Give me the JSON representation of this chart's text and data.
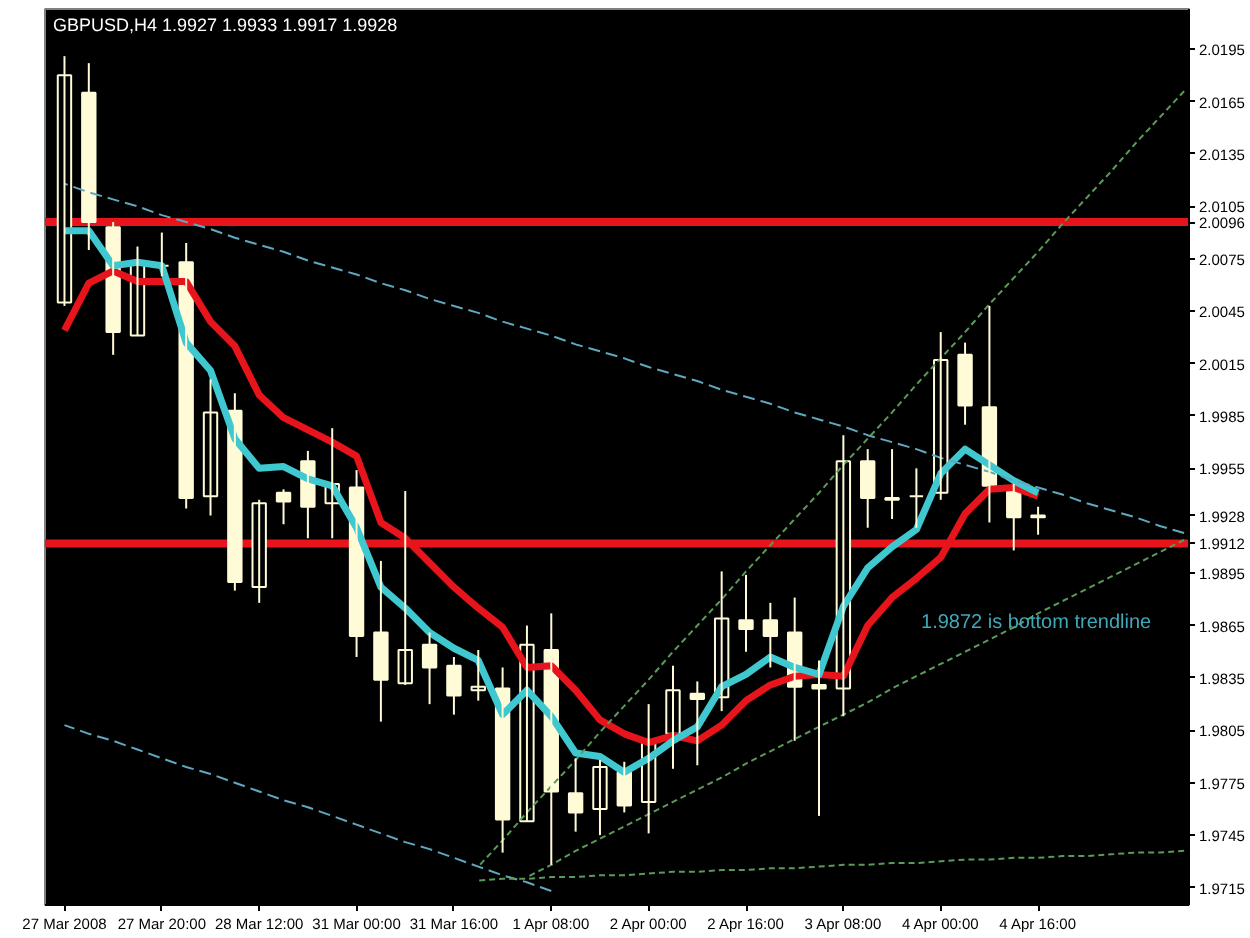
{
  "chart_data": {
    "type": "candlestick",
    "title": "GBPUSD,H4  1.9927 1.9933 1.9917 1.9928",
    "categories": [
      "27 Mar 2008",
      null,
      null,
      null,
      "27 Mar 20:00",
      null,
      null,
      null,
      "28 Mar 12:00",
      null,
      null,
      null,
      "31 Mar 00:00",
      null,
      null,
      null,
      "31 Mar 16:00",
      null,
      null,
      null,
      "1 Apr 08:00",
      null,
      null,
      null,
      "2 Apr 00:00",
      null,
      null,
      null,
      "2 Apr 16:00",
      null,
      null,
      null,
      "3 Apr 08:00",
      null,
      null,
      null,
      "4 Apr 00:00",
      null,
      null,
      null,
      "4 Apr 16:00",
      null,
      null,
      null,
      null,
      null,
      null
    ],
    "ohlc": [
      [
        2.005,
        2.0191,
        2.0048,
        2.018
      ],
      [
        2.017,
        2.0187,
        2.008,
        2.0096
      ],
      [
        2.0093,
        2.0096,
        2.002,
        2.0033
      ],
      [
        2.0031,
        2.0082,
        2.0031,
        2.0073
      ],
      [
        2.0071,
        2.009,
        2.0065,
        2.0071
      ],
      [
        2.0073,
        2.0084,
        1.9932,
        1.9938
      ],
      [
        1.9939,
        2.0006,
        1.9928,
        1.9987
      ],
      [
        1.9988,
        1.9998,
        1.9885,
        1.989
      ],
      [
        1.9887,
        1.9937,
        1.9878,
        1.9935
      ],
      [
        1.9941,
        1.9943,
        1.9923,
        1.9936
      ],
      [
        1.9959,
        1.9965,
        1.9915,
        1.9933
      ],
      [
        1.9935,
        1.9978,
        1.9915,
        1.9946
      ],
      [
        1.9944,
        1.9954,
        1.9847,
        1.9859
      ],
      [
        1.9861,
        1.9902,
        1.981,
        1.9834
      ],
      [
        1.9832,
        1.9942,
        1.9831,
        1.9851
      ],
      [
        1.9854,
        1.9861,
        1.982,
        1.9841
      ],
      [
        1.9842,
        1.9847,
        1.9814,
        1.9825
      ],
      [
        1.9828,
        1.9851,
        1.9822,
        1.983
      ],
      [
        1.9829,
        1.9841,
        1.9735,
        1.9754
      ],
      [
        1.9753,
        1.9865,
        1.9753,
        1.9854
      ],
      [
        1.9851,
        1.9872,
        1.9728,
        1.977
      ],
      [
        1.9769,
        1.9789,
        1.9747,
        1.9758
      ],
      [
        1.976,
        1.9788,
        1.9745,
        1.9784
      ],
      [
        1.9781,
        1.9787,
        1.9758,
        1.9762
      ],
      [
        1.9764,
        1.982,
        1.9746,
        1.9798
      ],
      [
        1.9803,
        1.9842,
        1.9783,
        1.9828
      ],
      [
        1.9826,
        1.9833,
        1.9785,
        1.9823
      ],
      [
        1.9824,
        1.9896,
        1.9816,
        1.9869
      ],
      [
        1.9868,
        1.9894,
        1.985,
        1.9863
      ],
      [
        1.9868,
        1.9878,
        1.9841,
        1.9859
      ],
      [
        1.9861,
        1.9881,
        1.9799,
        1.983
      ],
      [
        1.9831,
        1.9845,
        1.9756,
        1.9829
      ],
      [
        1.9829,
        1.9974,
        1.9813,
        1.9959
      ],
      [
        1.9959,
        1.9966,
        1.9921,
        1.9938
      ],
      [
        1.9938,
        1.9966,
        1.9926,
        1.9937
      ],
      [
        1.9939,
        1.9955,
        1.9921,
        1.9939
      ],
      [
        1.9941,
        2.0033,
        1.9937,
        2.0017
      ],
      [
        2.002,
        2.0027,
        1.998,
        1.9991
      ],
      [
        1.999,
        2.0048,
        1.9924,
        1.9945
      ],
      [
        1.9943,
        1.9946,
        1.9908,
        1.9927
      ],
      [
        1.9927,
        1.9933,
        1.9917,
        1.9928
      ],
      null,
      null,
      null,
      null,
      null,
      null
    ],
    "series": [
      {
        "type": "line",
        "color": "#e8141b",
        "line_style": "solid",
        "values": [
          2.0034,
          2.0061,
          2.0068,
          2.0062,
          2.0062,
          2.0062,
          2.0039,
          2.0025,
          1.9997,
          1.9984,
          1.9977,
          1.997,
          1.9962,
          1.9924,
          1.9915,
          1.9901,
          1.9887,
          1.9875,
          1.9864,
          1.9841,
          1.9842,
          1.9828,
          1.9811,
          1.9803,
          1.9798,
          1.9802,
          1.9799,
          1.9808,
          1.9822,
          1.9831,
          1.9836,
          1.9837,
          1.9836,
          1.9865,
          1.9881,
          1.9892,
          1.9904,
          1.9929,
          1.9943,
          1.9944,
          1.9939,
          null,
          null,
          null,
          null,
          null,
          null
        ]
      },
      {
        "type": "line",
        "color": "#40c8d0",
        "line_style": "solid",
        "values": [
          2.0091,
          2.0091,
          2.0071,
          2.0073,
          2.0071,
          2.0027,
          2.0011,
          1.9972,
          1.9955,
          1.9956,
          1.9949,
          1.9945,
          1.9921,
          1.9887,
          1.9875,
          1.9861,
          1.9852,
          1.9845,
          1.9814,
          1.9828,
          1.9813,
          1.9792,
          1.979,
          1.9781,
          1.9789,
          1.9799,
          1.9807,
          1.983,
          1.9837,
          1.9847,
          1.9841,
          1.9837,
          1.9876,
          1.9898,
          1.991,
          1.992,
          1.9952,
          1.9966,
          1.9957,
          1.9948,
          1.9941,
          null,
          null,
          null,
          null,
          null,
          null
        ]
      },
      {
        "type": "line",
        "color": "#5fa8c0",
        "line_style": "dashed",
        "values": [
          2.0118,
          2.0113,
          2.0109,
          2.0105,
          2.01,
          2.0096,
          2.0092,
          2.0087,
          2.0083,
          2.0079,
          2.0074,
          2.007,
          2.0066,
          2.0061,
          2.0057,
          2.0052,
          2.0048,
          2.0044,
          2.0039,
          2.0035,
          2.0031,
          2.0026,
          2.0022,
          2.0018,
          2.0013,
          2.0009,
          2.0005,
          2.0,
          1.9996,
          1.9992,
          1.9987,
          1.9983,
          1.9979,
          1.9974,
          1.997,
          1.9966,
          1.9961,
          1.9957,
          1.9953,
          1.9948,
          1.9944,
          1.994,
          1.9935,
          1.9931,
          1.9927,
          1.9922,
          1.9918
        ]
      },
      {
        "type": "line",
        "color": "#5fa8c0",
        "line_style": "dashed",
        "values": [
          1.9808,
          1.9803,
          1.9799,
          1.9794,
          1.9789,
          1.9784,
          1.978,
          1.9775,
          1.977,
          1.9765,
          1.9761,
          1.9756,
          1.9751,
          1.9746,
          1.9741,
          1.9737,
          1.9732,
          1.9727,
          1.9722,
          1.9718,
          1.9713,
          null,
          null,
          null,
          null,
          null,
          null,
          null,
          null,
          null,
          null,
          null,
          null,
          null,
          null,
          null,
          null,
          null,
          null,
          null,
          null,
          null,
          null,
          null,
          null,
          null,
          null
        ]
      },
      {
        "type": "line",
        "color": "#5a9a5a",
        "line_style": "dotted",
        "values": [
          null,
          null,
          null,
          null,
          null,
          null,
          null,
          null,
          null,
          null,
          null,
          null,
          null,
          null,
          null,
          null,
          null,
          1.9727,
          1.9742,
          1.9758,
          1.9773,
          1.9788,
          1.9804,
          1.9819,
          1.9834,
          1.985,
          1.9865,
          1.988,
          1.9896,
          1.9911,
          1.9926,
          1.9941,
          1.9957,
          1.9972,
          1.9987,
          2.0003,
          2.0018,
          2.0033,
          2.0049,
          2.0064,
          2.0079,
          2.0095,
          2.011,
          2.0125,
          2.0141,
          2.0156,
          2.0171
        ]
      },
      {
        "type": "line",
        "color": "#5a9a5a",
        "line_style": "dotted",
        "values": [
          null,
          null,
          null,
          null,
          null,
          null,
          null,
          null,
          null,
          null,
          null,
          null,
          null,
          null,
          null,
          null,
          null,
          null,
          null,
          1.9721,
          1.9728,
          1.9736,
          1.9743,
          1.975,
          1.9757,
          1.9764,
          1.9771,
          1.9778,
          1.9786,
          1.9793,
          1.98,
          1.9807,
          1.9814,
          1.9821,
          1.9829,
          1.9836,
          1.9843,
          1.985,
          1.9857,
          1.9864,
          1.9872,
          1.9879,
          1.9886,
          1.9893,
          1.99,
          1.9907,
          1.9914
        ]
      },
      {
        "type": "line",
        "color": "#5a9a5a",
        "line_style": "dotted",
        "values": [
          null,
          null,
          null,
          null,
          null,
          null,
          null,
          null,
          null,
          null,
          null,
          null,
          null,
          null,
          null,
          null,
          null,
          1.9719,
          1.972,
          1.972,
          1.9721,
          1.9721,
          1.9722,
          1.9722,
          1.9723,
          1.9724,
          1.9724,
          1.9725,
          1.9725,
          1.9726,
          1.9726,
          1.9727,
          1.9728,
          1.9728,
          1.9729,
          1.9729,
          1.973,
          1.9731,
          1.9731,
          1.9732,
          1.9732,
          1.9733,
          1.9733,
          1.9734,
          1.9735,
          1.9735,
          1.9736
        ]
      }
    ],
    "ylim": [
      1.9705,
      2.0218
    ],
    "yticks": [
      {
        "value": 1.9715,
        "label": "1.9715"
      },
      {
        "value": 1.9745,
        "label": "1.9745"
      },
      {
        "value": 1.9775,
        "label": "1.9775"
      },
      {
        "value": 1.9805,
        "label": "1.9805"
      },
      {
        "value": 1.9835,
        "label": "1.9835"
      },
      {
        "value": 1.9865,
        "label": "1.9865"
      },
      {
        "value": 1.9895,
        "label": "1.9895"
      },
      {
        "value": 1.9928,
        "label": "1.9928"
      },
      {
        "value": 1.9955,
        "label": "1.9955"
      },
      {
        "value": 1.9985,
        "label": "1.9985"
      },
      {
        "value": 2.0015,
        "label": "2.0015"
      },
      {
        "value": 2.0045,
        "label": "2.0045"
      },
      {
        "value": 2.0075,
        "label": "2.0075"
      },
      {
        "value": 2.0105,
        "label": "2.0105"
      },
      {
        "value": 2.0135,
        "label": "2.0135"
      },
      {
        "value": 2.0165,
        "label": "2.0165"
      },
      {
        "value": 2.0195,
        "label": "2.0195"
      }
    ],
    "ref_lines": [
      {
        "axis": "y",
        "value": 2.0096,
        "label": "2.0096",
        "color": "#e8141b"
      },
      {
        "axis": "y",
        "value": 1.9912,
        "label": "1.9912",
        "color": "#e8141b"
      }
    ],
    "annotations": [
      "1.9872  is bottom trendline"
    ]
  }
}
